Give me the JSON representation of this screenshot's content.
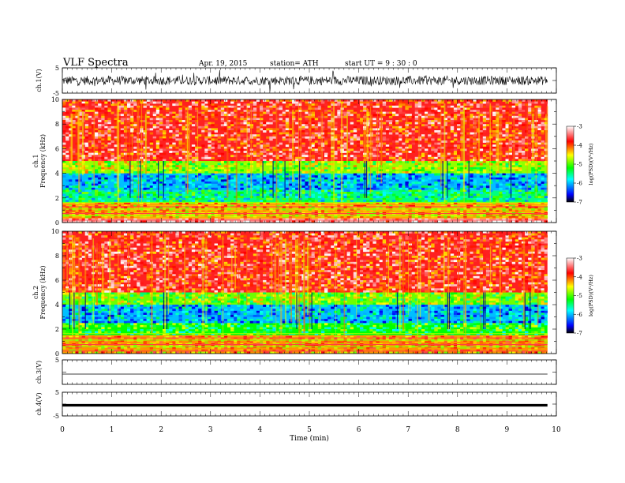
{
  "header": {
    "title": "VLF  Spectra",
    "date": "Apr. 19,  2015",
    "station": "station= ATH",
    "start": "start  UT =   9 : 30 : 0"
  },
  "chart_data": [
    {
      "type": "line",
      "panel": "ch1-waveform",
      "ylabel": "ch.1(V)",
      "ylim": [
        -5,
        5
      ],
      "y_ticks": [
        "5",
        "-5"
      ],
      "x_range_min": [
        0,
        9.82
      ],
      "description_level": "noisy waveform centered near 0 V, amplitude about ±2 V"
    },
    {
      "type": "heatmap",
      "panel": "ch1-spectrogram",
      "ylabel_lines": [
        "ch.1",
        "Frequency  (kHz)"
      ],
      "ylim": [
        0,
        10
      ],
      "y_ticks": [
        "0",
        "2",
        "4",
        "6",
        "8",
        "10"
      ],
      "x_range_min": [
        0,
        9.82
      ],
      "colorbar": {
        "label": "log(PSD)(V²/Hz)",
        "range": [
          -7,
          -3
        ],
        "ticks": [
          "-3",
          "-4",
          "-5",
          "-6",
          "-7"
        ]
      },
      "bands_khz": [
        {
          "from": 0.0,
          "to": 0.3,
          "level": -3.3
        },
        {
          "from": 0.3,
          "to": 1.6,
          "level": -4.3
        },
        {
          "from": 1.6,
          "to": 2.6,
          "level": -5.5
        },
        {
          "from": 2.6,
          "to": 4.0,
          "level": -6.0
        },
        {
          "from": 4.0,
          "to": 5.0,
          "level": -4.8
        },
        {
          "from": 5.0,
          "to": 10.0,
          "level": -3.7
        }
      ]
    },
    {
      "type": "heatmap",
      "panel": "ch2-spectrogram",
      "ylabel_lines": [
        "ch.2",
        "Frequency  (kHz)"
      ],
      "ylim": [
        0,
        10
      ],
      "y_ticks": [
        "0",
        "2",
        "4",
        "6",
        "8",
        "10"
      ],
      "x_range_min": [
        0,
        9.82
      ],
      "colorbar": {
        "label": "log(PSD)(V²/Hz)",
        "range": [
          -7,
          -3
        ],
        "ticks": [
          "-3",
          "-4",
          "-5",
          "-6",
          "-7"
        ]
      },
      "bands_khz": [
        {
          "from": 0.0,
          "to": 1.5,
          "level": -4.2
        },
        {
          "from": 1.5,
          "to": 2.5,
          "level": -5.2
        },
        {
          "from": 2.5,
          "to": 4.0,
          "level": -6.0
        },
        {
          "from": 4.0,
          "to": 5.0,
          "level": -4.9
        },
        {
          "from": 5.0,
          "to": 10.0,
          "level": -3.7
        }
      ]
    },
    {
      "type": "line",
      "panel": "ch3-waveform",
      "ylabel": "ch.3(V)",
      "ylim": [
        -5,
        5
      ],
      "y_ticks": [
        "5"
      ],
      "x_range_min": [
        0,
        9.82
      ],
      "description_level": "nearly flat trace near -0.8 V"
    },
    {
      "type": "line",
      "panel": "ch4-waveform",
      "ylabel": "ch.4(V)",
      "ylim": [
        -5,
        5
      ],
      "y_ticks": [
        "5",
        "-5"
      ],
      "x_range_min": [
        0,
        9.82
      ],
      "description_level": "thick flat trace near -0.5 V"
    }
  ],
  "x_axis": {
    "label": "Time  (min)",
    "ticks": [
      "0",
      "1",
      "2",
      "3",
      "4",
      "5",
      "6",
      "7",
      "8",
      "9",
      "10"
    ],
    "range": [
      0,
      10
    ]
  },
  "colors": {
    "colormap": [
      "#000000",
      "#0000ff",
      "#00ffff",
      "#00ff00",
      "#ffff00",
      "#ff0000",
      "#ffffff"
    ]
  }
}
